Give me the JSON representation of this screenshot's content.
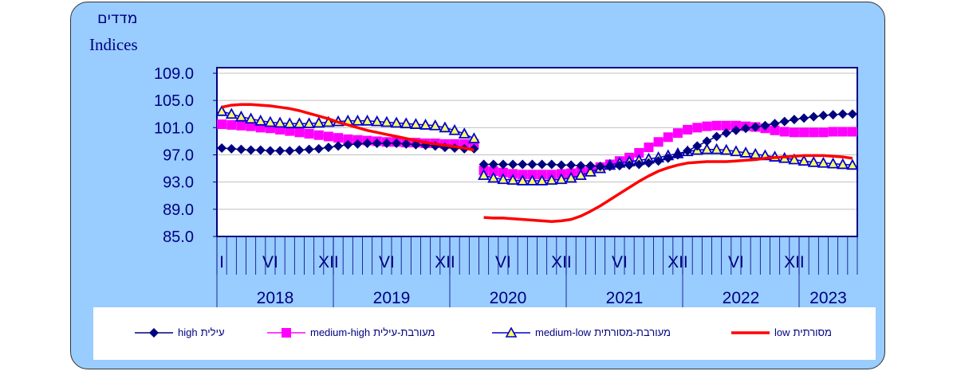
{
  "header": {
    "title_he": "מדדים",
    "title_en": "Indices"
  },
  "chart_data": {
    "type": "line",
    "title": "מדדים / Indices",
    "ylim": [
      85,
      109
    ],
    "yticks": [
      "85.0",
      "89.0",
      "93.0",
      "97.0",
      "101.0",
      "105.0",
      "109.0"
    ],
    "grid": true,
    "x_start": "2018-01",
    "x_end": "2023-06",
    "break_after_index": 26,
    "month_labels": [
      {
        "i": 0,
        "t": "I"
      },
      {
        "i": 5,
        "t": "VI"
      },
      {
        "i": 11,
        "t": "XII"
      },
      {
        "i": 17,
        "t": "VI"
      },
      {
        "i": 23,
        "t": "XII"
      },
      {
        "i": 29,
        "t": "VI"
      },
      {
        "i": 35,
        "t": "XII"
      },
      {
        "i": 41,
        "t": "VI"
      },
      {
        "i": 47,
        "t": "XII"
      },
      {
        "i": 53,
        "t": "VI"
      },
      {
        "i": 59,
        "t": "XII"
      }
    ],
    "years": [
      {
        "label": "2018",
        "start": 0,
        "months": 12
      },
      {
        "label": "2019",
        "start": 12,
        "months": 12
      },
      {
        "label": "2020",
        "start": 24,
        "months": 12
      },
      {
        "label": "2021",
        "start": 36,
        "months": 12
      },
      {
        "label": "2022",
        "start": 48,
        "months": 12
      },
      {
        "label": "2023",
        "start": 60,
        "months": 6
      }
    ],
    "legend_position": "bottom",
    "series": [
      {
        "name": "high",
        "label_en": "high",
        "label_he": "עילית",
        "color": "#000080",
        "marker": "diamond",
        "values": [
          98.0,
          97.9,
          97.8,
          97.7,
          97.7,
          97.6,
          97.6,
          97.6,
          97.7,
          97.8,
          97.9,
          98.1,
          98.3,
          98.5,
          98.6,
          98.7,
          98.7,
          98.7,
          98.7,
          98.6,
          98.5,
          98.4,
          98.3,
          98.1,
          98.0,
          97.9,
          97.9,
          95.6,
          95.6,
          95.6,
          95.6,
          95.6,
          95.6,
          95.6,
          95.6,
          95.5,
          95.5,
          95.4,
          95.4,
          95.3,
          95.3,
          95.4,
          95.5,
          95.6,
          95.8,
          96.1,
          96.5,
          97.0,
          97.6,
          98.3,
          99.0,
          99.7,
          100.2,
          100.6,
          100.9,
          101.1,
          101.3,
          101.6,
          101.9,
          102.2,
          102.4,
          102.6,
          102.8,
          102.9,
          103.0,
          103.0
        ]
      },
      {
        "name": "medium-high",
        "label_en": "medium-high",
        "label_he": "מעורבת-עילית",
        "color": "#FF00FF",
        "marker": "square",
        "values": [
          101.5,
          101.4,
          101.3,
          101.2,
          101.0,
          100.9,
          100.7,
          100.5,
          100.3,
          100.1,
          99.9,
          99.7,
          99.5,
          99.3,
          99.2,
          99.1,
          99.0,
          98.9,
          98.9,
          98.8,
          98.8,
          98.7,
          98.7,
          98.6,
          98.6,
          98.6,
          98.6,
          94.7,
          94.6,
          94.4,
          94.2,
          94.1,
          94.1,
          94.1,
          94.1,
          94.2,
          94.3,
          94.5,
          94.8,
          95.2,
          95.6,
          96.1,
          96.6,
          97.3,
          98.1,
          98.9,
          99.6,
          100.2,
          100.7,
          101.0,
          101.2,
          101.3,
          101.3,
          101.3,
          101.2,
          101.1,
          100.9,
          100.6,
          100.4,
          100.3,
          100.3,
          100.3,
          100.3,
          100.4,
          100.4,
          100.4
        ]
      },
      {
        "name": "medium-low",
        "label_en": "medium-low",
        "label_he": "מעורבת-מסורתית",
        "color": "#0000CC",
        "marker": "triangle",
        "values": [
          103.4,
          103.0,
          102.6,
          102.3,
          102.0,
          101.8,
          101.7,
          101.6,
          101.6,
          101.6,
          101.7,
          101.8,
          101.9,
          102.0,
          102.0,
          102.0,
          101.9,
          101.8,
          101.7,
          101.6,
          101.5,
          101.4,
          101.3,
          101.0,
          100.6,
          100.1,
          99.4,
          94.0,
          93.6,
          93.4,
          93.3,
          93.2,
          93.2,
          93.2,
          93.3,
          93.4,
          93.6,
          94.0,
          94.5,
          95.0,
          95.5,
          95.8,
          96.0,
          96.2,
          96.4,
          96.6,
          96.9,
          97.2,
          97.5,
          97.7,
          97.8,
          97.8,
          97.7,
          97.5,
          97.3,
          97.1,
          96.9,
          96.7,
          96.5,
          96.3,
          96.1,
          95.9,
          95.8,
          95.7,
          95.6,
          95.5
        ]
      },
      {
        "name": "low",
        "label_en": "low",
        "label_he": "מסורתית",
        "color": "#FF0000",
        "marker": "none",
        "values": [
          104.0,
          104.3,
          104.4,
          104.4,
          104.3,
          104.2,
          104.0,
          103.8,
          103.5,
          103.1,
          102.7,
          102.3,
          101.8,
          101.4,
          101.0,
          100.6,
          100.3,
          100.0,
          99.7,
          99.4,
          99.1,
          98.8,
          98.6,
          98.4,
          98.2,
          98.0,
          97.7,
          87.8,
          87.7,
          87.7,
          87.6,
          87.5,
          87.4,
          87.3,
          87.2,
          87.3,
          87.5,
          88.0,
          88.7,
          89.5,
          90.4,
          91.3,
          92.2,
          93.1,
          93.9,
          94.6,
          95.1,
          95.5,
          95.8,
          95.9,
          96.0,
          96.0,
          96.0,
          96.1,
          96.2,
          96.3,
          96.5,
          96.6,
          96.7,
          96.8,
          96.9,
          96.9,
          96.9,
          96.8,
          96.7,
          96.5
        ]
      }
    ]
  }
}
